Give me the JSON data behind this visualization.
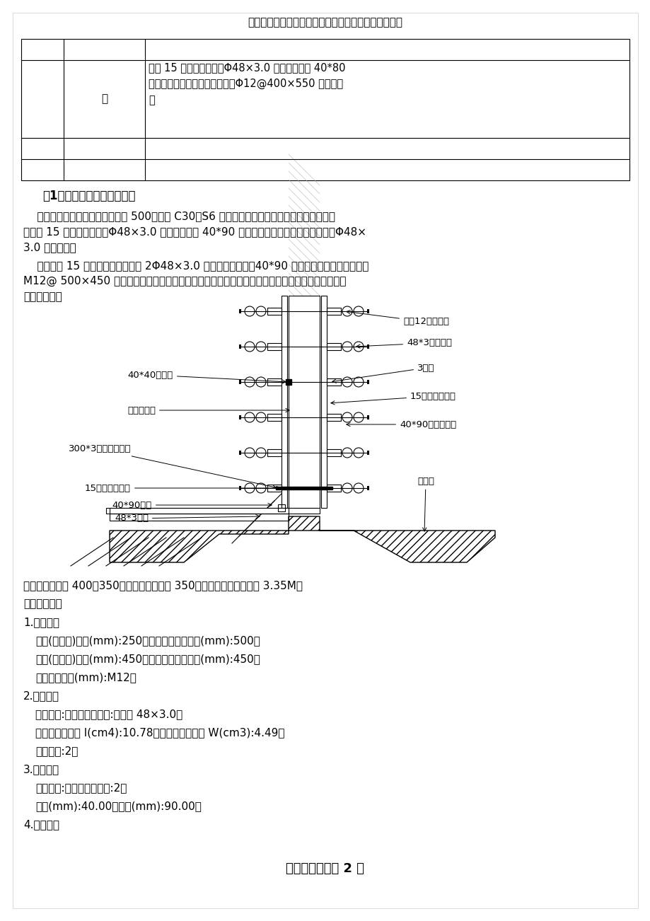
{
  "header_text": "精品文档，仅供学习与交流，如有侵权请联系网站删除",
  "footer_text": "【精品文档】第 2 页",
  "col2_text": "柱",
  "col3_text": "采用 15 厚九夹板模板，Φ48×3.0 双钢管主龙骨 40*80\n木枋次龙骨作为剪力墙模板；用Φ12@400×550 的对拉螺\n栓",
  "section_title": "（1）地下室内外墙模板设计",
  "para1_line1": "    本工程地下一层结构，基础板厚 500，采用 C30、S6 的防水砼，在砼垫层施工完成后，底板外",
  "para1_line2": "模采用 15 厚九夹板模板，Φ48×3.0 双钢管主龙骨 40*90 木枋次龙骨作为筏板基础的外模，Φ48×",
  "para1_line3": "3.0 钢管支撑。",
  "para2_line1": "    外墙采用 15 厚九夹板模板，采用 2Φ48×3.0 双钢管做主龙骨，40*90 木枋次龙骨作为外墙外模。",
  "para2_line2": "M12@ 500×450 可调节的穿墙对拉螺栓连接，内模板和外模板制作拼装工艺相同。底板和墙体模板",
  "para2_line3": "如下图所示：",
  "label_L1": "40*40止水片",
  "label_L2": "地下室砼墙",
  "label_L3": "300*3镀锌止水钢板",
  "label_L4": "15厚九夹木模板",
  "label_L5": "40*90木枋",
  "label_L6": "48*3钢管",
  "label_R1": "直径12对拉螺杆",
  "label_R2": "48*3钢管模带",
  "label_R3": "3型卡",
  "label_R4": "15厚九夹木模板",
  "label_R5": "40*90落叶松木枋",
  "label_R6": "砼筏板",
  "txt1": "地下室外墙墙厚 400、350，内墙剪力墙墙厚 350。浇注混凝土最大高度 3.35M。",
  "txt2": "一、参数信息",
  "txt3": "1.基本参数",
  "txt4": "次楞(内龙骨)间距(mm):250；穿墙螺栓水平间距(mm):500；",
  "txt5": "主楞(外龙骨)间距(mm):450；穿墙螺栓竖向间距(mm):450；",
  "txt6": "对拉螺栓直径(mm):M12；",
  "txt7": "2.主楞信息",
  "txt8": "龙骨材料:钢楞；截面类型:圆钢管 48×3.0；",
  "txt9": "钢楞截面惯性矩 I(cm4):10.78；钢楞截面抵抗矩 W(cm3):4.49；",
  "txt10": "主楞肢数:2；",
  "txt11": "3.次楞信息",
  "txt12": "龙骨材料:木楞；次楞肢数:2；",
  "txt13": "宽度(mm):40.00；高度(mm):90.00；",
  "txt14": "4.面板参数"
}
